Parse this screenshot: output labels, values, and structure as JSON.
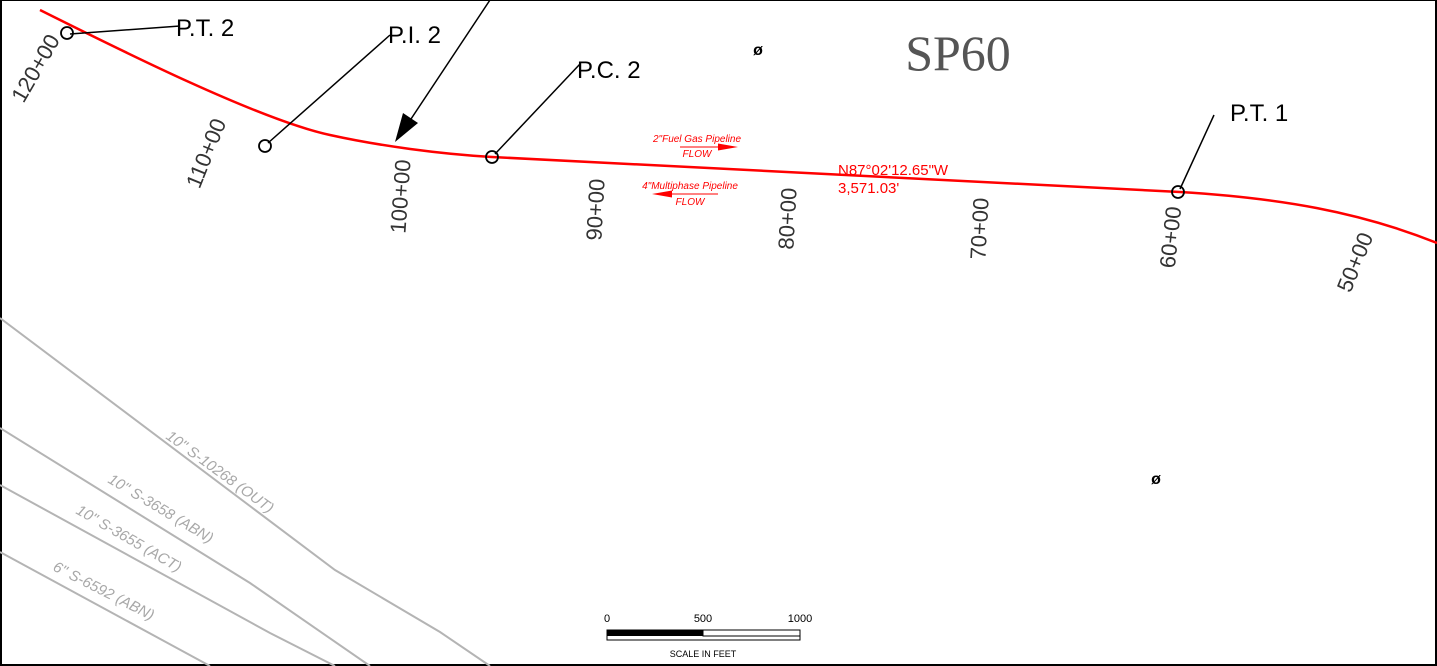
{
  "sheet_label": "SP60",
  "points": {
    "pt2": "P.T. 2",
    "pi2": "P.I. 2",
    "pc2": "P.C. 2",
    "pt1": "P.T. 1"
  },
  "stations": [
    "120+00",
    "110+00",
    "100+00",
    "90+00",
    "80+00",
    "70+00",
    "60+00",
    "50+00"
  ],
  "bearing": {
    "direction": "N87°02'12.65\"W",
    "distance": "3,571.03'"
  },
  "flow_notes": {
    "fuel_gas": "2\"Fuel Gas Pipeline",
    "fuel_gas_flow": "FLOW",
    "multiphase": "4\"Multiphase Pipeline",
    "multiphase_flow": "FLOW"
  },
  "pipelines": [
    "10\" S-10268 (OUT)",
    "10\" S-3658 (ABN)",
    "10\" S-3655 (ACT)",
    "6\" S-6592 (ABN)"
  ],
  "monument_symbol": "ø",
  "scale_bar": {
    "ticks": [
      "0",
      "500",
      "1000"
    ],
    "caption": "SCALE IN FEET"
  },
  "colors": {
    "alignment": "#ff0000",
    "existing_pipelines": "#b4b4b4",
    "border": "#000000"
  }
}
